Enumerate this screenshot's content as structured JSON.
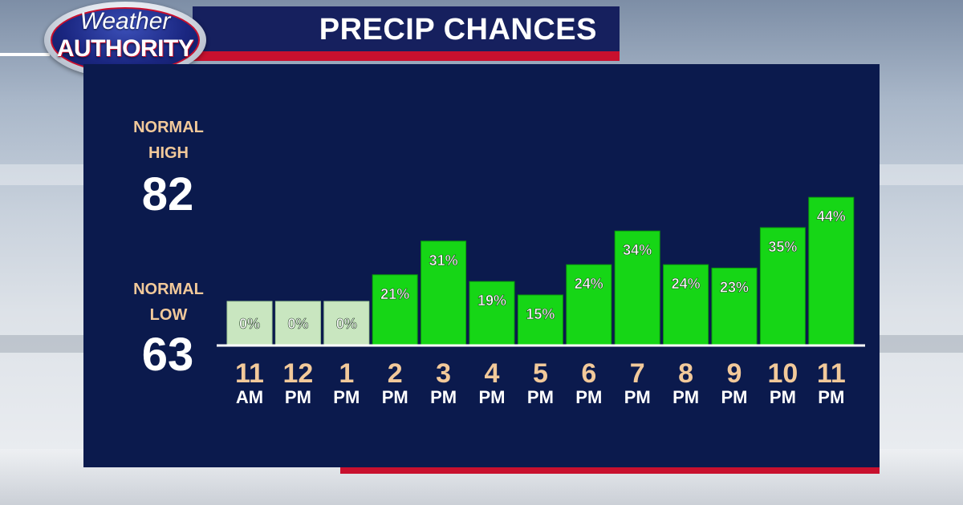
{
  "header": {
    "title": "PRECIP CHANCES"
  },
  "logo": {
    "line1": "Weather",
    "line2": "AUTHORITY"
  },
  "normals": {
    "high_label_1": "NORMAL",
    "high_label_2": "HIGH",
    "high_value": "82",
    "low_label_1": "NORMAL",
    "low_label_2": "LOW",
    "low_value": "63"
  },
  "colors": {
    "panel": "#0b1a4d",
    "header": "#16205e",
    "accent_red": "#c8102e",
    "bar_green": "#16d616",
    "bar_zero": "#c9e6c0",
    "tick_number": "#f2c99a"
  },
  "chart_data": {
    "type": "bar",
    "title": "PRECIP CHANCES",
    "categories": [
      "11 AM",
      "12 PM",
      "1 PM",
      "2 PM",
      "3 PM",
      "4 PM",
      "5 PM",
      "6 PM",
      "7 PM",
      "8 PM",
      "9 PM",
      "10 PM",
      "11 PM"
    ],
    "tick_numbers": [
      "11",
      "12",
      "1",
      "2",
      "3",
      "4",
      "5",
      "6",
      "7",
      "8",
      "9",
      "10",
      "11"
    ],
    "tick_suffixes": [
      "AM",
      "PM",
      "PM",
      "PM",
      "PM",
      "PM",
      "PM",
      "PM",
      "PM",
      "PM",
      "PM",
      "PM",
      "PM"
    ],
    "values": [
      0,
      0,
      0,
      21,
      31,
      19,
      15,
      24,
      34,
      24,
      23,
      35,
      44
    ],
    "data_labels": [
      "0%",
      "0%",
      "0%",
      "21%",
      "31%",
      "19%",
      "15%",
      "24%",
      "34%",
      "24%",
      "23%",
      "35%",
      "44%"
    ],
    "ylim": [
      0,
      50
    ],
    "xlabel": "",
    "ylabel": "",
    "grid": false
  }
}
